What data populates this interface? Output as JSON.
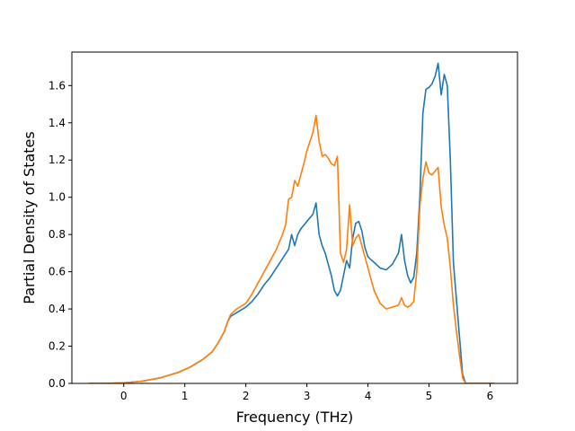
{
  "chart_data": {
    "type": "line",
    "title": "",
    "xlabel": "Frequency (THz)",
    "ylabel": "Partial Density of States",
    "xlim": [
      -0.85,
      6.45
    ],
    "ylim": [
      0.0,
      1.78
    ],
    "xticks": [
      0,
      1,
      2,
      3,
      4,
      5,
      6
    ],
    "xtick_labels": [
      "0",
      "1",
      "2",
      "3",
      "4",
      "5",
      "6"
    ],
    "yticks": [
      0.0,
      0.2,
      0.4,
      0.6,
      0.8,
      1.0,
      1.2,
      1.4,
      1.6
    ],
    "ytick_labels": [
      "0.0",
      "0.2",
      "0.4",
      "0.6",
      "0.8",
      "1.0",
      "1.2",
      "1.4",
      "1.6"
    ],
    "grid": false,
    "legend": "none",
    "series": [
      {
        "color": "#1f77b4",
        "x": [
          -0.57,
          -0.3,
          0.0,
          0.3,
          0.6,
          0.9,
          1.1,
          1.3,
          1.45,
          1.55,
          1.65,
          1.7,
          1.75,
          1.85,
          2.0,
          2.1,
          2.2,
          2.3,
          2.4,
          2.5,
          2.6,
          2.7,
          2.75,
          2.8,
          2.85,
          2.9,
          2.95,
          3.0,
          3.05,
          3.1,
          3.15,
          3.2,
          3.25,
          3.3,
          3.35,
          3.4,
          3.45,
          3.5,
          3.55,
          3.6,
          3.65,
          3.7,
          3.75,
          3.8,
          3.85,
          3.9,
          3.95,
          4.0,
          4.1,
          4.2,
          4.3,
          4.4,
          4.5,
          4.55,
          4.6,
          4.65,
          4.7,
          4.75,
          4.8,
          4.85,
          4.9,
          4.95,
          5.0,
          5.05,
          5.1,
          5.15,
          5.2,
          5.25,
          5.3,
          5.35,
          5.4,
          5.45,
          5.5,
          5.55,
          5.6,
          5.8,
          6.07
        ],
        "y": [
          0.0,
          0.0,
          0.003,
          0.012,
          0.03,
          0.06,
          0.09,
          0.13,
          0.17,
          0.22,
          0.28,
          0.33,
          0.36,
          0.38,
          0.41,
          0.44,
          0.48,
          0.53,
          0.57,
          0.62,
          0.67,
          0.72,
          0.8,
          0.74,
          0.8,
          0.83,
          0.85,
          0.87,
          0.89,
          0.91,
          0.97,
          0.8,
          0.74,
          0.7,
          0.64,
          0.58,
          0.5,
          0.47,
          0.5,
          0.58,
          0.66,
          0.62,
          0.78,
          0.86,
          0.87,
          0.82,
          0.73,
          0.68,
          0.65,
          0.62,
          0.61,
          0.64,
          0.7,
          0.8,
          0.66,
          0.58,
          0.54,
          0.57,
          0.7,
          1.0,
          1.45,
          1.58,
          1.59,
          1.61,
          1.65,
          1.72,
          1.55,
          1.66,
          1.6,
          1.2,
          0.65,
          0.45,
          0.25,
          0.05,
          0.0,
          0.0,
          0.0
        ]
      },
      {
        "color": "#ff7f0e",
        "x": [
          -0.57,
          -0.3,
          0.0,
          0.3,
          0.6,
          0.9,
          1.1,
          1.3,
          1.45,
          1.55,
          1.65,
          1.7,
          1.75,
          1.85,
          2.0,
          2.1,
          2.2,
          2.3,
          2.4,
          2.5,
          2.6,
          2.65,
          2.7,
          2.75,
          2.8,
          2.85,
          2.9,
          2.95,
          3.0,
          3.05,
          3.1,
          3.15,
          3.2,
          3.25,
          3.3,
          3.35,
          3.4,
          3.45,
          3.5,
          3.55,
          3.6,
          3.65,
          3.7,
          3.75,
          3.8,
          3.85,
          3.9,
          3.95,
          4.0,
          4.1,
          4.2,
          4.3,
          4.4,
          4.5,
          4.55,
          4.6,
          4.65,
          4.7,
          4.75,
          4.8,
          4.85,
          4.9,
          4.95,
          5.0,
          5.05,
          5.1,
          5.15,
          5.2,
          5.25,
          5.3,
          5.35,
          5.4,
          5.45,
          5.5,
          5.55,
          5.6,
          5.8,
          6.07
        ],
        "y": [
          0.0,
          0.0,
          0.003,
          0.012,
          0.03,
          0.06,
          0.09,
          0.13,
          0.17,
          0.22,
          0.28,
          0.33,
          0.37,
          0.4,
          0.43,
          0.48,
          0.54,
          0.6,
          0.66,
          0.72,
          0.8,
          0.85,
          0.99,
          1.0,
          1.09,
          1.06,
          1.12,
          1.18,
          1.25,
          1.3,
          1.35,
          1.44,
          1.3,
          1.22,
          1.23,
          1.21,
          1.18,
          1.17,
          1.22,
          0.7,
          0.65,
          0.72,
          0.96,
          0.74,
          0.78,
          0.8,
          0.74,
          0.68,
          0.62,
          0.5,
          0.43,
          0.4,
          0.41,
          0.42,
          0.46,
          0.42,
          0.41,
          0.42,
          0.44,
          0.6,
          0.95,
          1.1,
          1.19,
          1.13,
          1.12,
          1.14,
          1.16,
          0.95,
          0.85,
          0.78,
          0.62,
          0.42,
          0.28,
          0.15,
          0.03,
          0.0,
          0.0,
          0.0
        ]
      }
    ]
  },
  "colors": {
    "background": "#ffffff",
    "axes": "#000000",
    "series_1": "#1f77b4",
    "series_2": "#ff7f0e"
  }
}
